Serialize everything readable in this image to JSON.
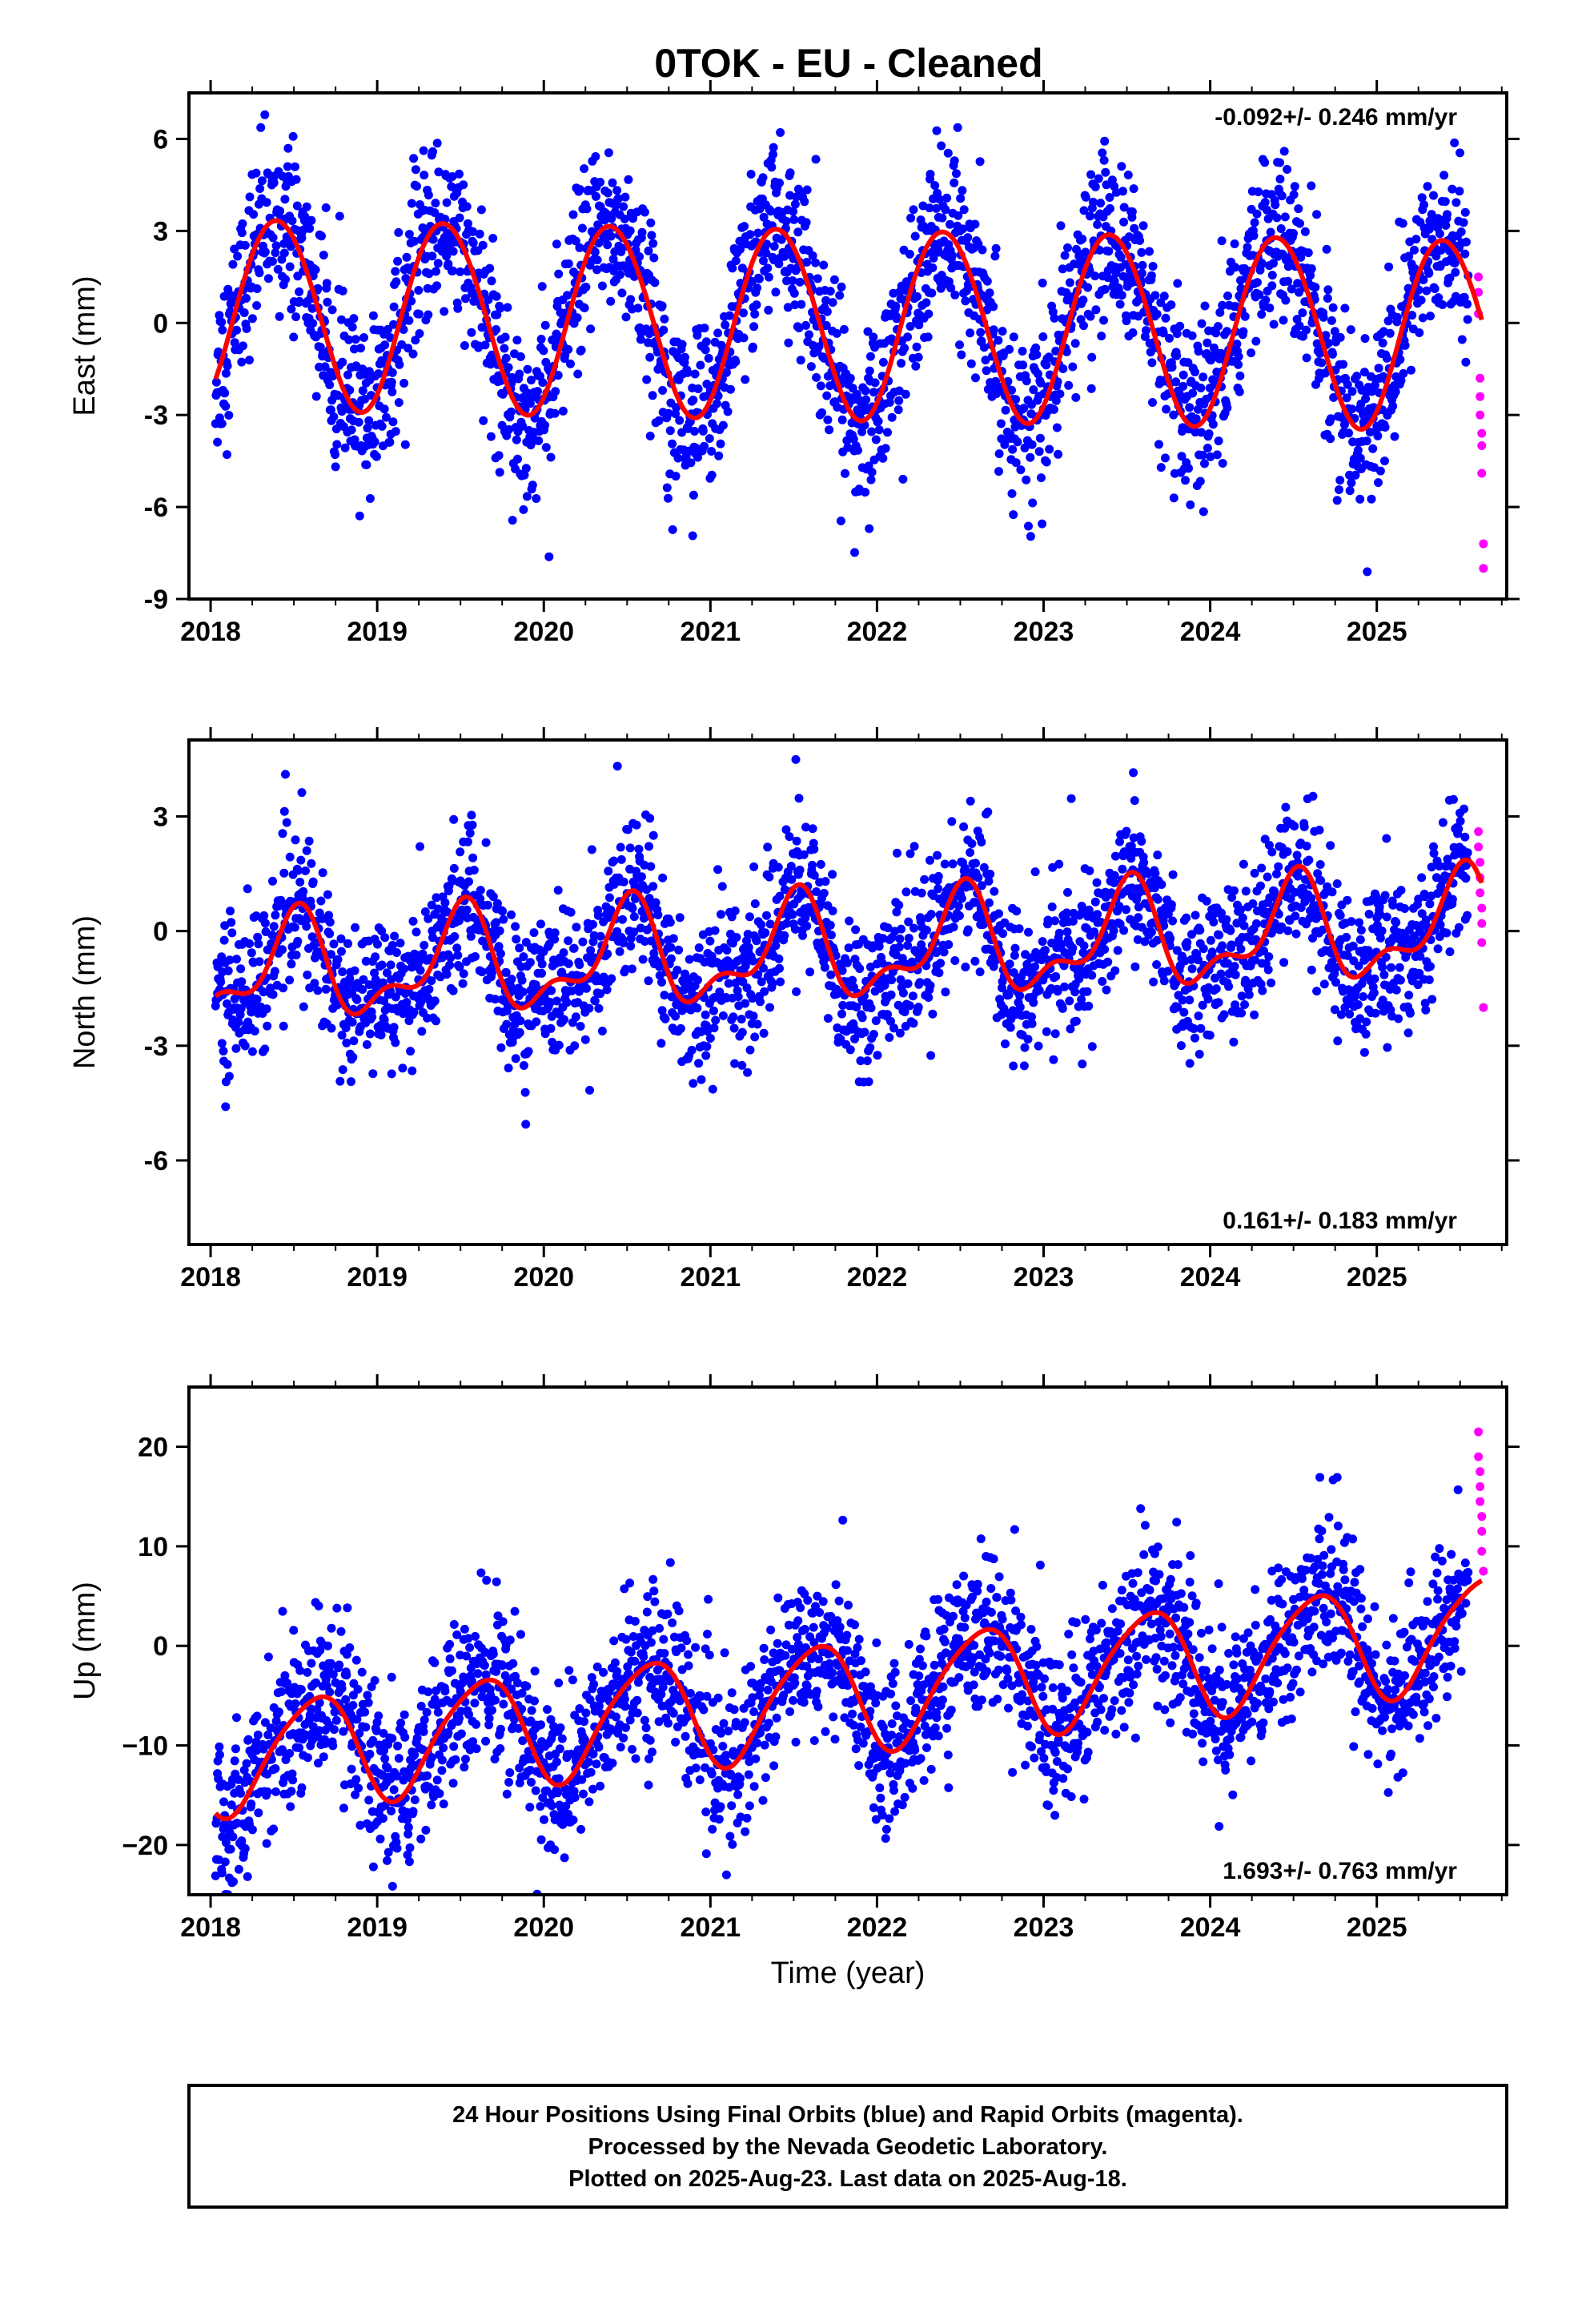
{
  "title": "0TOK  - EU - Cleaned",
  "chart_data": [
    {
      "type": "scatter",
      "ylabel": "East (mm)",
      "xlabel": "",
      "xlim": [
        2017.87,
        2025.78
      ],
      "ylim": [
        -9,
        7.5
      ],
      "xticks": [
        "2018",
        "2019",
        "2020",
        "2021",
        "2022",
        "2023",
        "2024",
        "2025"
      ],
      "yticks": [
        -9,
        -6,
        -3,
        0,
        3,
        6
      ],
      "ytick_labels": [
        "-9",
        "-6",
        "-3",
        "0",
        "3",
        "6"
      ],
      "rate_label": "-0.092+/- 0.246 mm/yr",
      "rate_position": "top-right",
      "series": [
        {
          "name": "Final Orbits",
          "color": "#0000ff",
          "model": {
            "offset": 0.0,
            "trend": -0.092,
            "annual_amp": 3.1,
            "annual_peak": 0.4,
            "semi_amp": 0.1,
            "semi_peak": 0.2,
            "scatter": 1.4
          },
          "x_range": [
            2018.03,
            2025.55
          ]
        },
        {
          "name": "Rapid Orbits",
          "color": "#ff00ff",
          "points": [
            [
              2025.61,
              1.5
            ],
            [
              2025.61,
              1.0
            ],
            [
              2025.61,
              0.3
            ],
            [
              2025.62,
              -1.8
            ],
            [
              2025.62,
              -2.4
            ],
            [
              2025.62,
              -3.0
            ],
            [
              2025.63,
              -3.6
            ],
            [
              2025.63,
              -4.0
            ],
            [
              2025.63,
              -4.9
            ],
            [
              2025.64,
              -7.2
            ],
            [
              2025.64,
              -8.0
            ]
          ]
        },
        {
          "name": "Fit",
          "color": "#ff0000",
          "type": "line",
          "model": {
            "offset": 0.0,
            "trend": -0.092,
            "annual_amp": 3.1,
            "annual_peak": 0.4,
            "semi_amp": 0.1,
            "semi_peak": 0.2
          },
          "x_range": [
            2018.03,
            2025.63
          ]
        }
      ]
    },
    {
      "type": "scatter",
      "ylabel": "North (mm)",
      "xlabel": "",
      "xlim": [
        2017.87,
        2025.78
      ],
      "ylim": [
        -8.2,
        5.0
      ],
      "xticks": [
        "2018",
        "2019",
        "2020",
        "2021",
        "2022",
        "2023",
        "2024",
        "2025"
      ],
      "yticks": [
        -6,
        -3,
        0,
        3
      ],
      "ytick_labels": [
        "-6",
        "-3",
        "0",
        "3"
      ],
      "rate_label": "0.161+/- 0.183 mm/yr",
      "rate_position": "bottom-right",
      "series": [
        {
          "name": "Final Orbits",
          "color": "#0000ff",
          "model": {
            "offset": -0.5,
            "trend": 0.161,
            "annual_amp": 1.2,
            "annual_peak": 0.5,
            "semi_amp": 0.6,
            "semi_peak": 0.05,
            "scatter": 1.0
          },
          "x_range": [
            2018.03,
            2025.55
          ]
        },
        {
          "name": "Rapid Orbits",
          "color": "#ff00ff",
          "points": [
            [
              2025.61,
              2.6
            ],
            [
              2025.61,
              2.2
            ],
            [
              2025.62,
              1.8
            ],
            [
              2025.62,
              1.4
            ],
            [
              2025.62,
              1.0
            ],
            [
              2025.63,
              0.6
            ],
            [
              2025.63,
              0.2
            ],
            [
              2025.63,
              -0.3
            ],
            [
              2025.64,
              -2.0
            ]
          ]
        },
        {
          "name": "Fit",
          "color": "#ff0000",
          "type": "line",
          "model": {
            "offset": -0.5,
            "trend": 0.161,
            "annual_amp": 1.2,
            "annual_peak": 0.5,
            "semi_amp": 0.6,
            "semi_peak": 0.05
          },
          "x_range": [
            2018.03,
            2025.63
          ]
        }
      ]
    },
    {
      "type": "scatter",
      "ylabel": "Up (mm)",
      "xlabel": "Time (year)",
      "xlim": [
        2017.87,
        2025.78
      ],
      "ylim": [
        -25,
        26
      ],
      "xticks": [
        "2018",
        "2019",
        "2020",
        "2021",
        "2022",
        "2023",
        "2024",
        "2025"
      ],
      "yticks": [
        -20,
        -10,
        0,
        10,
        20
      ],
      "ytick_labels": [
        "−20",
        "−10",
        "0",
        "10",
        "20"
      ],
      "rate_label": "1.693+/- 0.763 mm/yr",
      "rate_position": "bottom-right",
      "series": [
        {
          "name": "Final Orbits",
          "color": "#0000ff",
          "model": {
            "offset": -5.0,
            "trend": 1.693,
            "annual_amp": 5.5,
            "annual_peak": 0.62,
            "semi_amp": 0.8,
            "semi_peak": 0.3,
            "scatter": 4.0
          },
          "x_range": [
            2018.03,
            2025.55
          ]
        },
        {
          "name": "Rapid Orbits",
          "color": "#ff00ff",
          "points": [
            [
              2025.61,
              21.5
            ],
            [
              2025.61,
              19.0
            ],
            [
              2025.62,
              17.5
            ],
            [
              2025.62,
              16.0
            ],
            [
              2025.62,
              14.5
            ],
            [
              2025.63,
              13.0
            ],
            [
              2025.63,
              11.5
            ],
            [
              2025.63,
              9.5
            ],
            [
              2025.64,
              7.5
            ]
          ]
        },
        {
          "name": "Fit",
          "color": "#ff0000",
          "type": "line",
          "model": {
            "offset": -5.0,
            "trend": 1.693,
            "annual_amp": 5.5,
            "annual_peak": 0.62,
            "semi_amp": 0.8,
            "semi_peak": 0.3
          },
          "x_range": [
            2018.03,
            2025.63
          ]
        }
      ]
    }
  ],
  "caption": {
    "line1": "24 Hour Positions Using Final Orbits (blue) and Rapid Orbits (magenta).",
    "line2": "Processed by the Nevada Geodetic Laboratory.",
    "line3": "Plotted on 2025-Aug-23. Last data on 2025-Aug-18."
  }
}
